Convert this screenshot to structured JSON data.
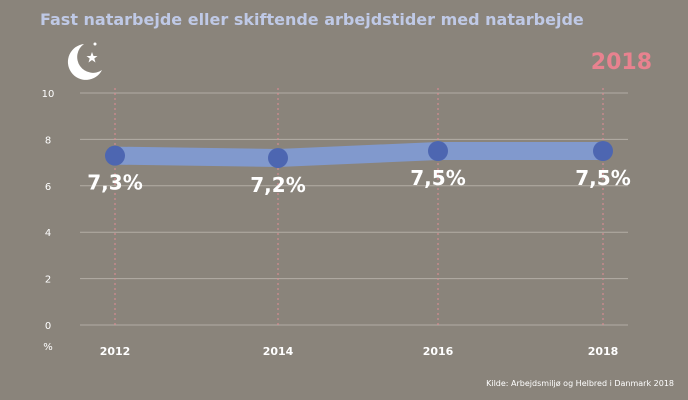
{
  "title": "Fast natarbejde eller skiftende arbejdstider med natarbejde",
  "year_badge": "2018",
  "source": "Kilde: Arbejdsmiljø og Helbred i Danmark 2018",
  "icon": "moon-stars-icon",
  "colors": {
    "background": "#8a847b",
    "title": "#bfc9e6",
    "year_badge": "#e8828f",
    "line_band": "#8199cd",
    "point": "#4d66b1",
    "vertical_guides": "#e38b95",
    "gridlines": "#b3ada5"
  },
  "chart_data": {
    "type": "line",
    "title": "Fast natarbejde eller skiftende arbejdstider med natarbejde",
    "ylabel": "%",
    "xlabel": "",
    "categories": [
      "2012",
      "2014",
      "2016",
      "2018"
    ],
    "values": [
      7.3,
      7.2,
      7.5,
      7.5
    ],
    "data_labels": [
      "7,3%",
      "7,2%",
      "7,5%",
      "7,5%"
    ],
    "yticks": [
      "0",
      "2",
      "4",
      "6",
      "8",
      "10"
    ],
    "ylim": [
      0,
      10
    ],
    "grid": true
  }
}
